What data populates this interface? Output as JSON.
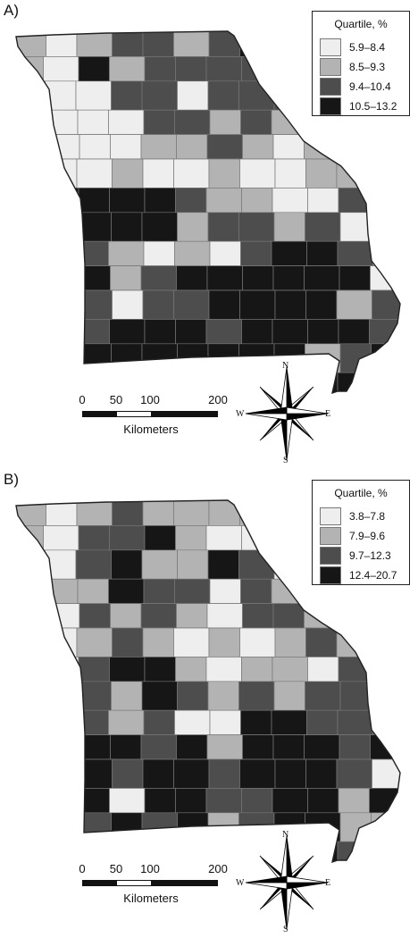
{
  "panels": [
    {
      "letter": "A)",
      "legend": {
        "title": "Quartile, %",
        "items": [
          {
            "label": "5.9–8.4",
            "color": "#eeeeee"
          },
          {
            "label": "8.5–9.3",
            "color": "#b3b3b3"
          },
          {
            "label": "9.4–10.4",
            "color": "#4d4d4d"
          },
          {
            "label": "10.5–13.2",
            "color": "#161616"
          }
        ]
      },
      "scale": {
        "ticks": [
          "0",
          "50",
          "100",
          "200"
        ],
        "unit": "Kilometers"
      },
      "compass": {
        "n": "N",
        "s": "S",
        "e": "E",
        "w": "W"
      }
    },
    {
      "letter": "B)",
      "legend": {
        "title": "Quartile, %",
        "items": [
          {
            "label": "3.8–7.8",
            "color": "#eeeeee"
          },
          {
            "label": "7.9–9.6",
            "color": "#b3b3b3"
          },
          {
            "label": "9.7–12.3",
            "color": "#4d4d4d"
          },
          {
            "label": "12.4–20.7",
            "color": "#161616"
          }
        ]
      },
      "scale": {
        "ticks": [
          "0",
          "50",
          "100",
          "200"
        ],
        "unit": "Kilometers"
      },
      "compass": {
        "n": "N",
        "s": "S",
        "e": "E",
        "w": "W"
      }
    }
  ],
  "maps": [
    {
      "name": "map-a",
      "grid": [
        [
          1,
          0,
          1,
          2,
          2,
          1,
          2,
          3,
          3,
          2,
          2,
          1
        ],
        [
          1,
          0,
          3,
          1,
          2,
          2,
          2,
          2,
          1,
          3,
          1,
          1
        ],
        [
          1,
          0,
          0,
          2,
          2,
          0,
          2,
          2,
          2,
          2,
          1,
          0
        ],
        [
          0,
          0,
          0,
          0,
          2,
          2,
          1,
          2,
          1,
          1,
          0,
          1
        ],
        [
          0,
          0,
          0,
          0,
          1,
          1,
          2,
          1,
          0,
          1,
          1,
          2
        ],
        [
          0,
          0,
          0,
          1,
          0,
          0,
          1,
          0,
          0,
          1,
          1,
          0
        ],
        [
          2,
          3,
          3,
          3,
          3,
          2,
          1,
          1,
          0,
          0,
          2,
          1
        ],
        [
          2,
          2,
          3,
          3,
          3,
          1,
          2,
          2,
          1,
          2,
          0,
          2
        ],
        [
          2,
          3,
          2,
          1,
          0,
          1,
          0,
          2,
          3,
          3,
          2,
          1
        ],
        [
          2,
          3,
          3,
          1,
          2,
          3,
          3,
          3,
          3,
          3,
          3,
          0
        ],
        [
          1,
          2,
          2,
          0,
          2,
          2,
          3,
          3,
          3,
          3,
          1,
          2
        ],
        [
          1,
          1,
          2,
          3,
          3,
          3,
          2,
          3,
          3,
          3,
          3,
          2
        ],
        [
          1,
          2,
          3,
          3,
          3,
          3,
          3,
          3,
          3,
          1,
          2,
          3
        ],
        [
          1,
          1,
          2,
          3,
          3,
          3,
          3,
          3,
          3,
          3,
          3,
          1
        ]
      ]
    },
    {
      "name": "map-b",
      "grid": [
        [
          1,
          0,
          1,
          2,
          1,
          1,
          1,
          1,
          3,
          0,
          1,
          1
        ],
        [
          1,
          0,
          2,
          2,
          3,
          1,
          0,
          0,
          1,
          2,
          1,
          2
        ],
        [
          1,
          0,
          2,
          3,
          1,
          1,
          3,
          2,
          0,
          0,
          1,
          2
        ],
        [
          0,
          1,
          1,
          3,
          2,
          2,
          0,
          2,
          1,
          1,
          1,
          0
        ],
        [
          0,
          0,
          2,
          1,
          2,
          1,
          0,
          2,
          2,
          1,
          0,
          1
        ],
        [
          0,
          0,
          1,
          2,
          1,
          0,
          1,
          0,
          1,
          2,
          1,
          1
        ],
        [
          0,
          0,
          2,
          3,
          3,
          1,
          0,
          1,
          1,
          0,
          2,
          1
        ],
        [
          2,
          1,
          2,
          1,
          3,
          2,
          1,
          2,
          1,
          2,
          2,
          1
        ],
        [
          1,
          3,
          2,
          1,
          2,
          0,
          0,
          3,
          3,
          2,
          2,
          2
        ],
        [
          2,
          3,
          3,
          3,
          2,
          3,
          1,
          3,
          3,
          3,
          2,
          3
        ],
        [
          1,
          2,
          3,
          2,
          3,
          3,
          2,
          3,
          3,
          3,
          2,
          0
        ],
        [
          1,
          2,
          3,
          0,
          3,
          3,
          2,
          2,
          3,
          3,
          1,
          3
        ],
        [
          1,
          1,
          2,
          3,
          2,
          3,
          1,
          2,
          3,
          3,
          1,
          1
        ],
        [
          2,
          1,
          2,
          1,
          3,
          3,
          2,
          3,
          3,
          3,
          2,
          3
        ]
      ]
    }
  ]
}
